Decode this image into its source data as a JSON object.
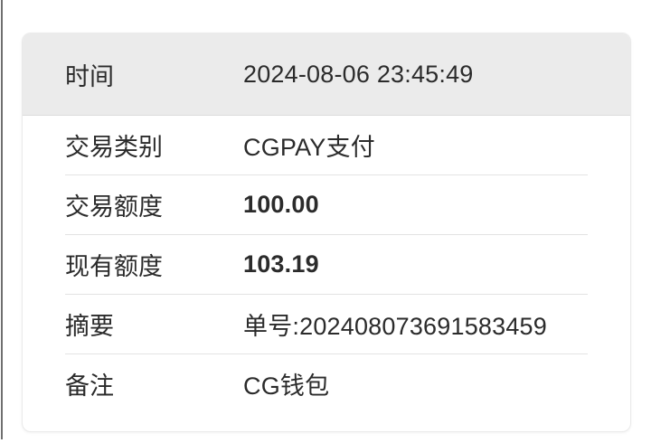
{
  "window": {
    "left_edge_line_color": "#6f6f6f"
  },
  "card": {
    "header": {
      "label": "时间",
      "value": "2024-08-06 23:45:49"
    },
    "rows": [
      {
        "label": "交易类别",
        "value": "CGPAY支付",
        "bold": false
      },
      {
        "label": "交易额度",
        "value": "100.00",
        "bold": true
      },
      {
        "label": "现有额度",
        "value": "103.19",
        "bold": true
      },
      {
        "label": "摘要",
        "value": "单号:202408073691583459",
        "bold": false
      },
      {
        "label": "备注",
        "value": "CG钱包",
        "bold": false
      }
    ],
    "colors": {
      "header_background": "#ebebeb",
      "divider": "#e3e3e3",
      "text": "#2b2b2b",
      "card_border": "#eaeaea"
    }
  }
}
